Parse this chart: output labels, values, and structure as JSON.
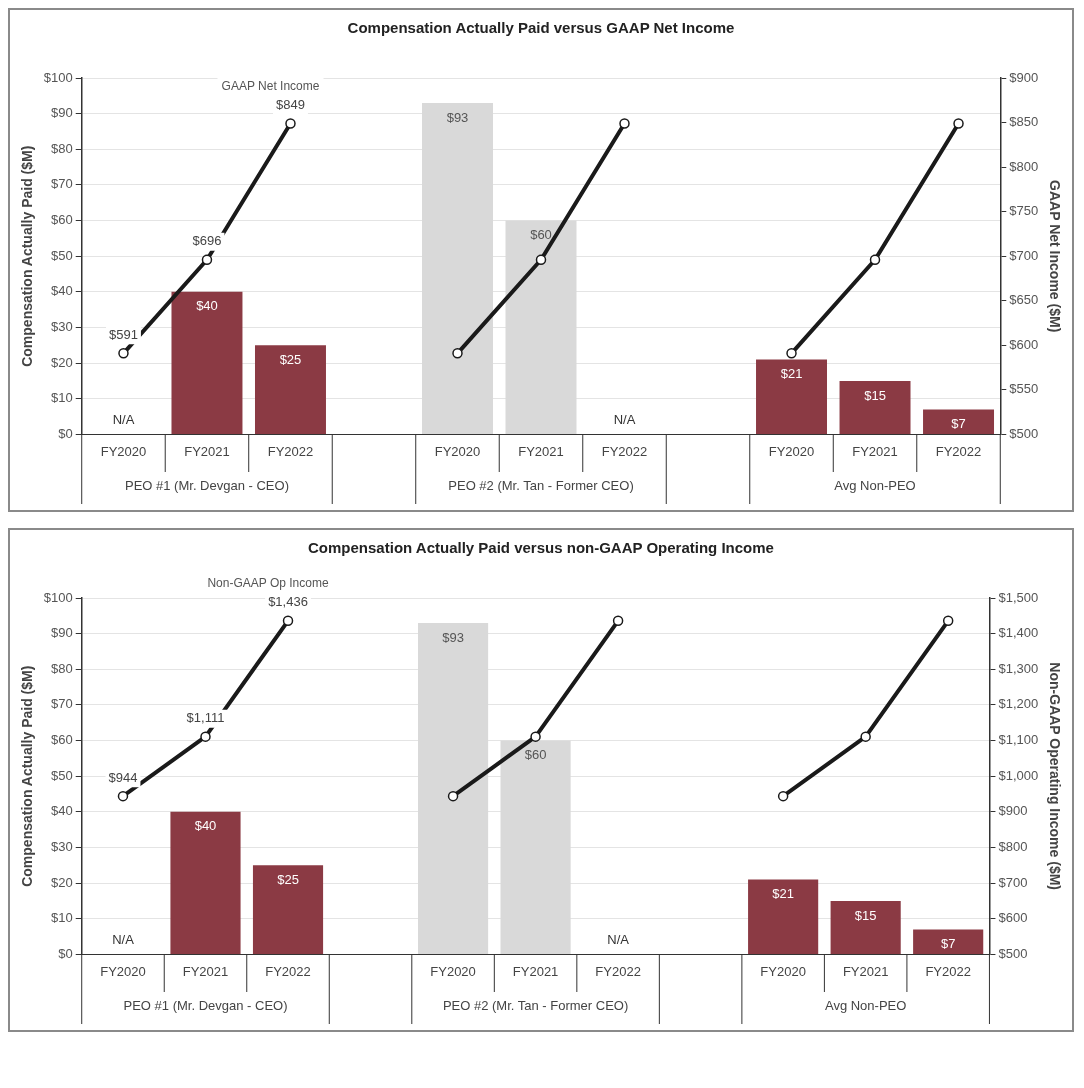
{
  "chart_data": [
    {
      "type": "bar",
      "title": "Compensation Actually Paid versus GAAP Net Income",
      "ylabel": "Compensation Actually Paid ($M)",
      "y2label": "GAAP Net Income ($M)",
      "categories": [
        "FY2020",
        "FY2021",
        "FY2022",
        null,
        "FY2020",
        "FY2021",
        "FY2022",
        null,
        "FY2020",
        "FY2021",
        "FY2022"
      ],
      "series": [
        {
          "type": "bar",
          "colors": [
            "#8b3a44",
            "#8b3a44",
            "#8b3a44",
            "#8b3a44",
            "#d9d9d9",
            "#d9d9d9",
            "#d9d9d9",
            "#8b3a44",
            "#8b3a44",
            "#8b3a44",
            "#8b3a44"
          ],
          "values": [
            null,
            40,
            25,
            null,
            93,
            60,
            null,
            null,
            21,
            15,
            7
          ],
          "value_labels": [
            "N/A",
            "$40",
            "$25",
            null,
            "$93",
            "$60",
            "N/A",
            null,
            "$21",
            "$15",
            "$7"
          ]
        },
        {
          "type": "line",
          "name": "GAAP Net Income",
          "axis": "y2",
          "color": "#1a1a1a",
          "values": [
            591,
            696,
            849,
            null,
            591,
            696,
            849,
            null,
            591,
            696,
            849
          ],
          "value_labels": [
            "$591",
            "$696",
            "$849",
            null,
            null,
            null,
            null,
            null,
            null,
            null,
            null
          ]
        }
      ],
      "ylim": [
        0,
        100
      ],
      "yticks": [
        {
          "value": 0,
          "label": "$0"
        },
        {
          "value": 10,
          "label": "$10"
        },
        {
          "value": 20,
          "label": "$20"
        },
        {
          "value": 30,
          "label": "$30"
        },
        {
          "value": 40,
          "label": "$40"
        },
        {
          "value": 50,
          "label": "$50"
        },
        {
          "value": 60,
          "label": "$60"
        },
        {
          "value": 70,
          "label": "$70"
        },
        {
          "value": 80,
          "label": "$80"
        },
        {
          "value": 90,
          "label": "$90"
        },
        {
          "value": 100,
          "label": "$100"
        }
      ],
      "y2lim": [
        500,
        900
      ],
      "y2ticks": [
        {
          "value": 500,
          "label": "$500"
        },
        {
          "value": 550,
          "label": "$550"
        },
        {
          "value": 600,
          "label": "$600"
        },
        {
          "value": 650,
          "label": "$650"
        },
        {
          "value": 700,
          "label": "$700"
        },
        {
          "value": 750,
          "label": "$750"
        },
        {
          "value": 800,
          "label": "$800"
        },
        {
          "value": 850,
          "label": "$850"
        },
        {
          "value": 900,
          "label": "$900"
        }
      ],
      "annotations": [
        "PEO #1 (Mr. Devgan - CEO)",
        "PEO #2 (Mr. Tan - Former CEO)",
        "Avg Non-PEO"
      ],
      "grid": "y",
      "marker": "circle"
    },
    {
      "type": "bar",
      "title": "Compensation Actually Paid versus non-GAAP Operating Income",
      "ylabel": "Compensation Actually Paid ($M)",
      "y2label": "Non-GAAP Operating Income ($M)",
      "categories": [
        "FY2020",
        "FY2021",
        "FY2022",
        null,
        "FY2020",
        "FY2021",
        "FY2022",
        null,
        "FY2020",
        "FY2021",
        "FY2022"
      ],
      "series": [
        {
          "type": "bar",
          "colors": [
            "#8b3a44",
            "#8b3a44",
            "#8b3a44",
            "#8b3a44",
            "#d9d9d9",
            "#d9d9d9",
            "#d9d9d9",
            "#8b3a44",
            "#8b3a44",
            "#8b3a44",
            "#8b3a44"
          ],
          "values": [
            null,
            40,
            25,
            null,
            93,
            60,
            null,
            null,
            21,
            15,
            7
          ],
          "value_labels": [
            "N/A",
            "$40",
            "$25",
            null,
            "$93",
            "$60",
            "N/A",
            null,
            "$21",
            "$15",
            "$7"
          ]
        },
        {
          "type": "line",
          "name": "Non-GAAP Op Income",
          "axis": "y2",
          "color": "#1a1a1a",
          "values": [
            944,
            1111,
            1436,
            null,
            944,
            1111,
            1436,
            null,
            944,
            1111,
            1436
          ],
          "value_labels": [
            "$944",
            "$1,111",
            "$1,436",
            null,
            null,
            null,
            null,
            null,
            null,
            null,
            null
          ]
        }
      ],
      "ylim": [
        0,
        100
      ],
      "yticks": [
        {
          "value": 0,
          "label": "$0"
        },
        {
          "value": 10,
          "label": "$10"
        },
        {
          "value": 20,
          "label": "$20"
        },
        {
          "value": 30,
          "label": "$30"
        },
        {
          "value": 40,
          "label": "$40"
        },
        {
          "value": 50,
          "label": "$50"
        },
        {
          "value": 60,
          "label": "$60"
        },
        {
          "value": 70,
          "label": "$70"
        },
        {
          "value": 80,
          "label": "$80"
        },
        {
          "value": 90,
          "label": "$90"
        },
        {
          "value": 100,
          "label": "$100"
        }
      ],
      "y2lim": [
        500,
        1500
      ],
      "y2ticks": [
        {
          "value": 500,
          "label": "$500"
        },
        {
          "value": 600,
          "label": "$600"
        },
        {
          "value": 700,
          "label": "$700"
        },
        {
          "value": 800,
          "label": "$800"
        },
        {
          "value": 900,
          "label": "$900"
        },
        {
          "value": 1000,
          "label": "$1,000"
        },
        {
          "value": 1100,
          "label": "$1,100"
        },
        {
          "value": 1200,
          "label": "$1,200"
        },
        {
          "value": 1300,
          "label": "$1,300"
        },
        {
          "value": 1400,
          "label": "$1,400"
        },
        {
          "value": 1500,
          "label": "$1,500"
        }
      ],
      "annotations": [
        "PEO #1 (Mr. Devgan - CEO)",
        "PEO #2 (Mr. Tan - Former CEO)",
        "Avg Non-PEO"
      ],
      "grid": "y",
      "marker": "circle"
    }
  ]
}
